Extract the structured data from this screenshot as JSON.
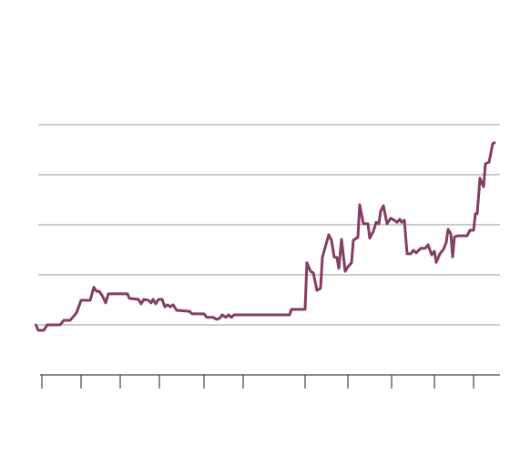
{
  "chart_data": {
    "type": "line",
    "x": [
      0,
      0.6,
      1.8,
      2.6,
      5.4,
      6.2,
      7.6,
      9,
      10,
      12,
      12.8,
      13.4,
      14,
      14.8,
      15.4,
      16,
      20.2,
      20.6,
      22.6,
      23.2,
      23.8,
      24.8,
      25.4,
      25.8,
      26.4,
      27,
      27.8,
      28.4,
      29,
      29.6,
      30.2,
      31,
      33.8,
      34.4,
      37,
      37.6,
      39,
      39.8,
      40.4,
      41,
      41.8,
      42.4,
      43,
      43.6,
      55.8,
      56.2,
      59.2,
      59.6,
      60.4,
      61,
      61.8,
      62.6,
      63,
      64.4,
      65,
      65.6,
      66.2,
      66.6,
      67.2,
      68,
      68.6,
      69.4,
      69.8,
      70.8,
      71.2,
      72,
      73,
      73.4,
      74.2,
      74.8,
      75.4,
      75.8,
      76.4,
      77.2,
      78,
      78.8,
      79.4,
      80,
      80.4,
      81,
      81.6,
      82.4,
      83,
      83.6,
      84.6,
      85.6,
      86.2,
      87,
      87.6,
      88,
      88.8,
      89.6,
      90.2,
      90.6,
      91.2,
      91.6,
      92,
      92.8,
      94.8,
      95.4,
      96.2,
      96.6,
      97,
      97.6,
      98.4,
      98.8,
      99.6,
      100.4,
      101
    ],
    "series": [
      {
        "color": "#843d63",
        "values": [
          1.02,
          0.89,
          0.89,
          1.0,
          1.0,
          1.09,
          1.09,
          1.24,
          1.49,
          1.49,
          1.75,
          1.67,
          1.67,
          1.56,
          1.44,
          1.62,
          1.62,
          1.53,
          1.51,
          1.42,
          1.51,
          1.49,
          1.44,
          1.51,
          1.42,
          1.51,
          1.51,
          1.36,
          1.4,
          1.36,
          1.4,
          1.29,
          1.27,
          1.22,
          1.22,
          1.15,
          1.15,
          1.11,
          1.13,
          1.2,
          1.15,
          1.2,
          1.15,
          1.2,
          1.2,
          1.31,
          1.31,
          2.24,
          2.07,
          2.04,
          1.69,
          1.73,
          2.35,
          2.8,
          2.69,
          2.35,
          2.35,
          2.13,
          2.71,
          2.07,
          2.16,
          2.24,
          2.69,
          2.75,
          3.4,
          3.02,
          3.02,
          2.73,
          2.87,
          3.05,
          3.02,
          3.27,
          3.38,
          3.02,
          3.13,
          3.09,
          3.05,
          3.11,
          3.05,
          3.09,
          2.42,
          2.42,
          2.49,
          2.44,
          2.53,
          2.53,
          2.6,
          2.4,
          2.47,
          2.25,
          2.42,
          2.51,
          2.65,
          2.91,
          2.82,
          2.36,
          2.76,
          2.78,
          2.78,
          2.89,
          2.89,
          3.22,
          3.22,
          3.93,
          3.76,
          4.22,
          4.25,
          4.62,
          4.65
        ]
      }
    ],
    "xlim": [
      0,
      101
    ],
    "xticks": [
      {
        "value": 1.4,
        "label": null
      },
      {
        "value": 10,
        "label": null
      },
      {
        "value": 18.6,
        "label": null
      },
      {
        "value": 27.2,
        "label": null
      },
      {
        "value": 37,
        "label": null
      },
      {
        "value": 45.6,
        "label": null
      },
      {
        "value": 59.2,
        "label": null
      },
      {
        "value": 68.6,
        "label": null
      },
      {
        "value": 78.2,
        "label": null
      },
      {
        "value": 87.6,
        "label": null
      },
      {
        "value": 96.2,
        "label": null
      }
    ],
    "ylim": [
      0,
      5.5
    ],
    "yticks": [
      {
        "value": 1,
        "label": null
      },
      {
        "value": 2,
        "label": null
      },
      {
        "value": 3,
        "label": null
      },
      {
        "value": 4,
        "label": null
      },
      {
        "value": 5,
        "label": null
      }
    ],
    "grid": true
  }
}
